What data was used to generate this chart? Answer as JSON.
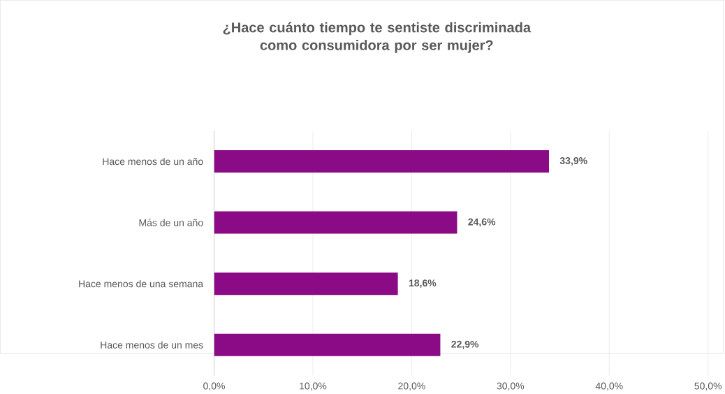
{
  "chart_data": {
    "type": "bar",
    "orientation": "horizontal",
    "title": "¿Hace cuánto tiempo te sentiste discriminada como consumidora por ser mujer?",
    "categories": [
      "Hace menos de un año",
      "Más de un año",
      "Hace menos de una semana",
      "Hace menos de un mes"
    ],
    "values": [
      33.9,
      24.6,
      18.6,
      22.9
    ],
    "value_labels": [
      "33,9%",
      "24,6%",
      "18,6%",
      "22,9%"
    ],
    "color": "#8b0a86",
    "xlim": [
      0,
      50
    ],
    "xticks": [
      {
        "value": 0,
        "label": "0,0%"
      },
      {
        "value": 10,
        "label": "10,0%"
      },
      {
        "value": 20,
        "label": "20,0%"
      },
      {
        "value": 30,
        "label": "30,0%"
      },
      {
        "value": 40,
        "label": "40,0%"
      },
      {
        "value": 50,
        "label": "50,0%"
      }
    ],
    "grid": "x"
  }
}
